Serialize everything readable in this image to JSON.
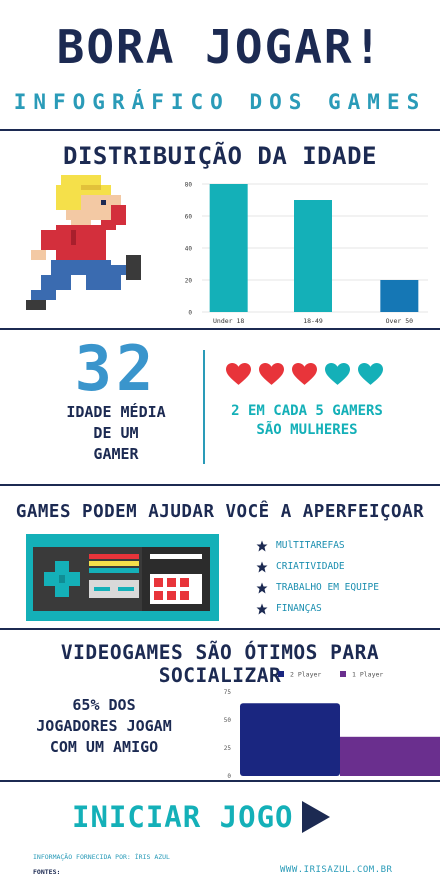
{
  "header": {
    "title": "BORA JOGAR!",
    "subtitle": "INFOGRÁFICO DOS GAMES"
  },
  "age_section": {
    "title": "DISTRIBUIÇÃO DA IDADE"
  },
  "stats": {
    "average_age": "32",
    "average_age_label_1": "IDADE MÉDIA",
    "average_age_label_2": "DE UM",
    "average_age_label_3": "GAMER",
    "women_label_1": "2 EM CADA 5 GAMERS",
    "women_label_2": "SÃO MULHERES",
    "hearts": [
      "red",
      "red",
      "red",
      "teal",
      "teal"
    ]
  },
  "improve_section": {
    "title": "GAMES PODEM AJUDAR VOCÊ A APERFEIÇOAR",
    "skills": [
      "MUlTITAREFAS",
      "CRIATIVIDADE",
      "TRABALHO EM EQUIPE",
      "FINANÇAS"
    ]
  },
  "social_section": {
    "title": "VIDEOGAMES SÃO ÓTIMOS PARA SOCIALIZAR",
    "label_1": "65% DOS",
    "label_2": "JOGADORES JOGAM",
    "label_3": "COM UM AMIGO"
  },
  "cta": {
    "label": "INICIAR JOGO",
    "icon": "play-triangle-icon"
  },
  "footer": {
    "credit": "INFORMAÇÃO FORNECIDA POR: ÍRIS AZUL",
    "sources": "FONTES:",
    "website": "WWW.IRISAZUL.COM.BR"
  },
  "colors": {
    "navy": "#1c2a52",
    "teal": "#14b0b8",
    "blue": "#1577b5",
    "red": "#e8343a",
    "purple": "#6a2f8e"
  },
  "chart_data": [
    {
      "type": "bar",
      "categories": [
        "Under 18",
        "18-49",
        "Over 50"
      ],
      "values": [
        80,
        70,
        20
      ],
      "ylim": [
        0,
        80
      ],
      "yticks": [
        0,
        20,
        40,
        60,
        80
      ],
      "grid": true,
      "bar_colors": [
        "#14b0b8",
        "#14b0b8",
        "#1577b5"
      ]
    },
    {
      "type": "bar",
      "categories": [
        ""
      ],
      "series": [
        {
          "name": "2 Player",
          "values": [
            65
          ],
          "color": "#1a2680"
        },
        {
          "name": "1 Player",
          "values": [
            35
          ],
          "color": "#6a2f8e"
        }
      ],
      "ylim": [
        0,
        75
      ],
      "yticks": [
        0,
        25,
        50,
        75
      ],
      "legend": "top"
    }
  ]
}
